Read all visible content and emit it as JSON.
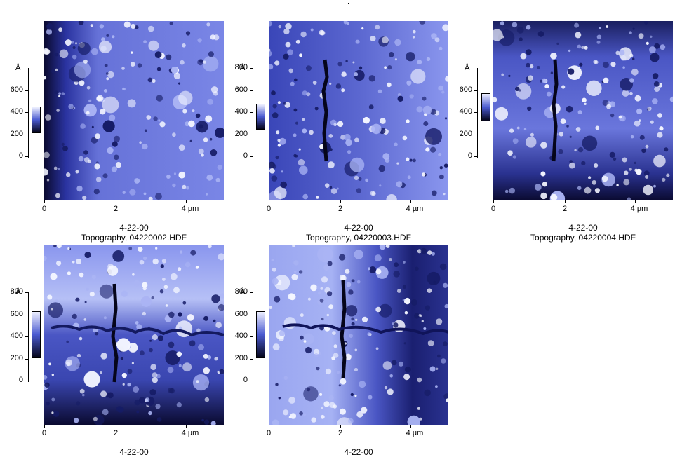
{
  "panels": [
    {
      "date": "4-22-00",
      "title": "Topography,  04220002.HDF",
      "z_unit": "Å",
      "z_ticks": [
        "600",
        "400",
        "200",
        "0"
      ],
      "x_ticks": [
        "0",
        "2",
        "4 µm"
      ],
      "variant": "a"
    },
    {
      "date": "4-22-00",
      "title": "Topography,  04220003.HDF",
      "z_unit": "Å",
      "z_ticks": [
        "800",
        "600",
        "400",
        "200",
        "0"
      ],
      "x_ticks": [
        "0",
        "2",
        "4 µm"
      ],
      "variant": "b"
    },
    {
      "date": "4-22-00",
      "title": "Topography,  04220004.HDF",
      "z_unit": "Å",
      "z_ticks": [
        "600",
        "400",
        "200",
        "0"
      ],
      "x_ticks": [
        "0",
        "2",
        "4 µm"
      ],
      "variant": "c"
    },
    {
      "date": "4-22-00",
      "title": "",
      "z_unit": "Å",
      "z_ticks": [
        "800",
        "600",
        "400",
        "200",
        "0"
      ],
      "x_ticks": [
        "0",
        "2",
        "4 µm"
      ],
      "variant": "d"
    },
    {
      "date": "4-22-00",
      "title": "",
      "z_unit": "Å",
      "z_ticks": [
        "800",
        "600",
        "400",
        "200",
        "0"
      ],
      "x_ticks": [
        "0",
        "2",
        "4 µm"
      ],
      "variant": "e"
    }
  ],
  "colors": {
    "dark": "#05051a",
    "mid": "#4a5ad0",
    "light": "#eef0ff"
  }
}
